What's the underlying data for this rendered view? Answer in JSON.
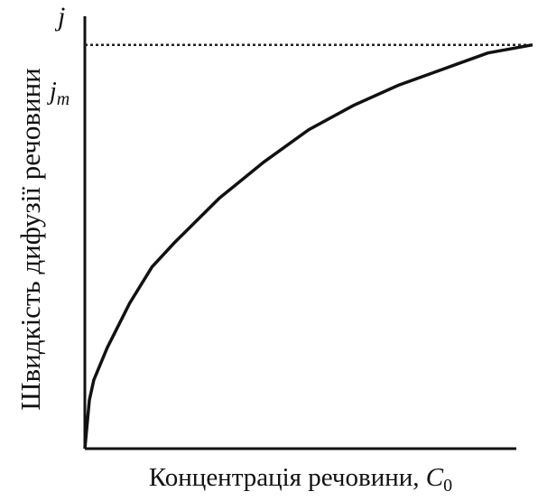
{
  "chart_data": {
    "type": "line",
    "y_axis_symbol": "j",
    "ylabel": "Швидкість дифузії речовини",
    "xlabel_text": "Концентрація речовини, ",
    "xlabel_symbol": "C",
    "xlabel_subscript": "0",
    "asymptote": {
      "symbol": "j",
      "subscript": "m",
      "value": 1.0,
      "style": "dotted"
    },
    "x_range": [
      0,
      1
    ],
    "y_range": [
      0,
      1.1
    ],
    "grid": false,
    "series": [
      {
        "x": [
          0,
          0.01,
          0.02,
          0.05,
          0.1,
          0.15,
          0.2,
          0.3,
          0.4,
          0.5,
          0.6,
          0.7,
          0.8,
          0.9,
          0.95,
          1.0
        ],
        "y": [
          0,
          0.12,
          0.17,
          0.25,
          0.36,
          0.45,
          0.51,
          0.62,
          0.71,
          0.79,
          0.85,
          0.9,
          0.94,
          0.98,
          0.99,
          1.0
        ]
      }
    ],
    "colors": {
      "line": "#111111",
      "axis": "#111111"
    }
  }
}
